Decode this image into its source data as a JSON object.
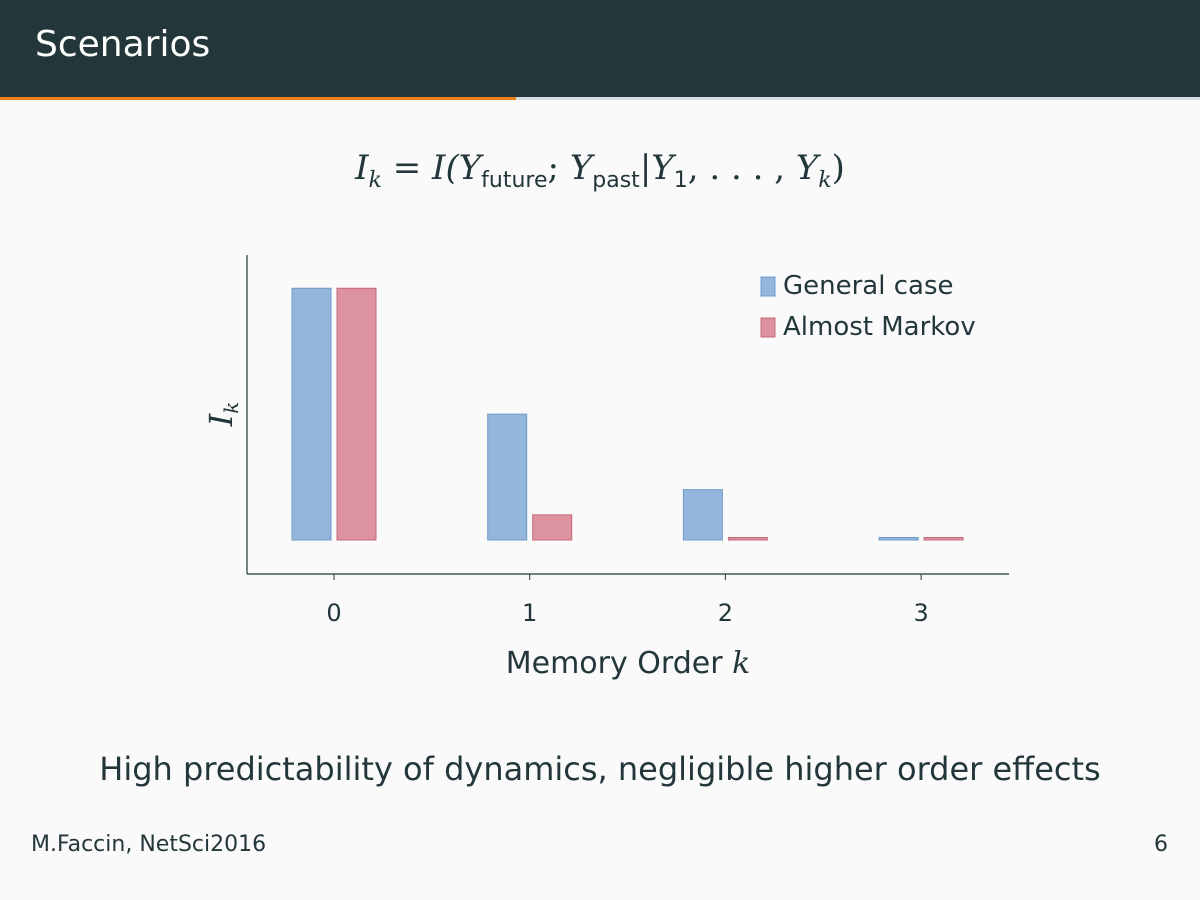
{
  "slide": {
    "title": "Scenarios",
    "progress_fraction": 0.43
  },
  "formula": {
    "lhs": "I",
    "lhs_sub": "k",
    "rhs": "I(",
    "y1": "Y",
    "y1_sub": "future",
    "sep": ";",
    "y2": "Y",
    "y2_sub": "past",
    "cond": "|",
    "y3": "Y",
    "y3_sub": "1",
    "dots": ", . . . , ",
    "y4": "Y",
    "y4_sub": "k",
    "close": ")"
  },
  "chart_data": {
    "type": "bar",
    "categories": [
      "0",
      "1",
      "2",
      "3"
    ],
    "series": [
      {
        "name": "General case",
        "values": [
          1.0,
          0.5,
          0.2,
          0.01
        ],
        "color": "#94b6dd",
        "stroke": "#6d9bc9"
      },
      {
        "name": "Almost Markov",
        "values": [
          1.0,
          0.1,
          0.01,
          0.01
        ],
        "color": "#dc929f",
        "stroke": "#c7687a"
      }
    ],
    "xlabel": "Memory Order",
    "xlabel_var": "k",
    "ylabel": "I",
    "ylabel_sub": "k",
    "ylim": [
      0,
      1.14
    ],
    "grid": false,
    "legend_position": "top-right",
    "y_ticks_shown": false
  },
  "caption": "High predictability of dynamics, negligible higher order effects",
  "footer": {
    "author": "M.Faccin, NetSci2016",
    "page": "6"
  }
}
